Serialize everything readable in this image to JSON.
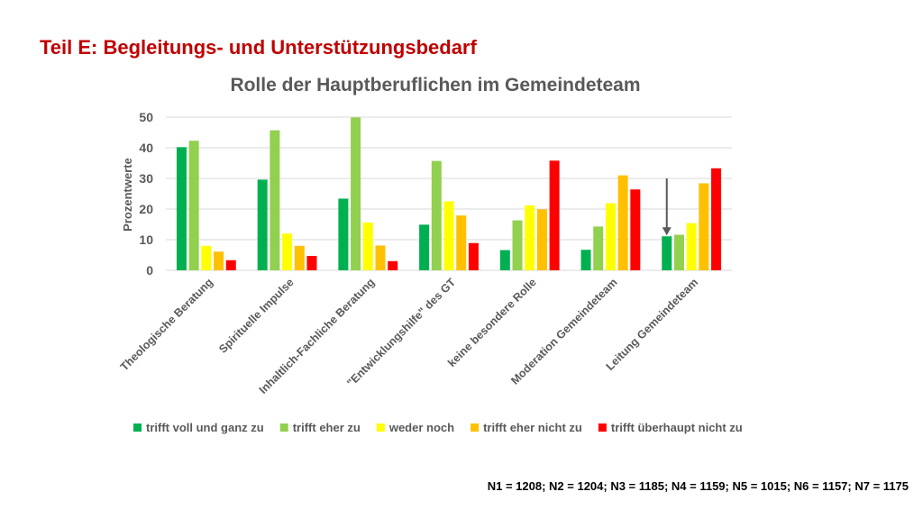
{
  "slide": {
    "title": "Teil E: Begleitungs- und Unterstützungsbedarf",
    "footnote": "N1 = 1208; N2 = 1204; N3 = 1185; N4 = 1159; N5 = 1015; N6 = 1157; N7 = 1175"
  },
  "chart_data": {
    "type": "bar",
    "title": "Rolle der Hauptberuflichen im Gemeindeteam",
    "xlabel": "",
    "ylabel": "Prozentwerte",
    "ylim": [
      0,
      50
    ],
    "yticks": [
      0,
      10,
      20,
      30,
      40,
      50
    ],
    "grid": true,
    "legend_position": "bottom",
    "categories": [
      "Theologische Beratung",
      "Spirituelle Impulse",
      "Inhaltlich-Fachliche Beratung",
      "\"Entwicklungshilfe\" des GT",
      "keine besondere Rolle",
      "Moderation Gemeindeteam",
      "Leitung Gemeindeteam"
    ],
    "series": [
      {
        "name": "trifft voll und ganz zu",
        "color": "#00b050",
        "values": [
          40.2,
          29.6,
          23.4,
          14.9,
          6.6,
          6.7,
          11.1
        ]
      },
      {
        "name": "trifft eher zu",
        "color": "#92d050",
        "values": [
          42.3,
          45.7,
          49.9,
          35.7,
          16.3,
          14.3,
          11.6
        ]
      },
      {
        "name": "weder noch",
        "color": "#ffff00",
        "values": [
          8.0,
          12.0,
          15.6,
          22.5,
          21.2,
          21.9,
          15.4
        ]
      },
      {
        "name": "trifft eher nicht zu",
        "color": "#ffc000",
        "values": [
          6.1,
          8.0,
          8.1,
          17.9,
          19.9,
          31.0,
          28.4
        ]
      },
      {
        "name": "trifft überhaupt nicht zu",
        "color": "#ff0000",
        "values": [
          3.3,
          4.7,
          3.0,
          8.9,
          35.8,
          26.4,
          33.3
        ]
      }
    ],
    "annotations": [
      {
        "type": "arrow",
        "category": "Leitung Gemeindeteam",
        "series": "trifft voll und ganz zu",
        "color": "#595959"
      }
    ]
  }
}
